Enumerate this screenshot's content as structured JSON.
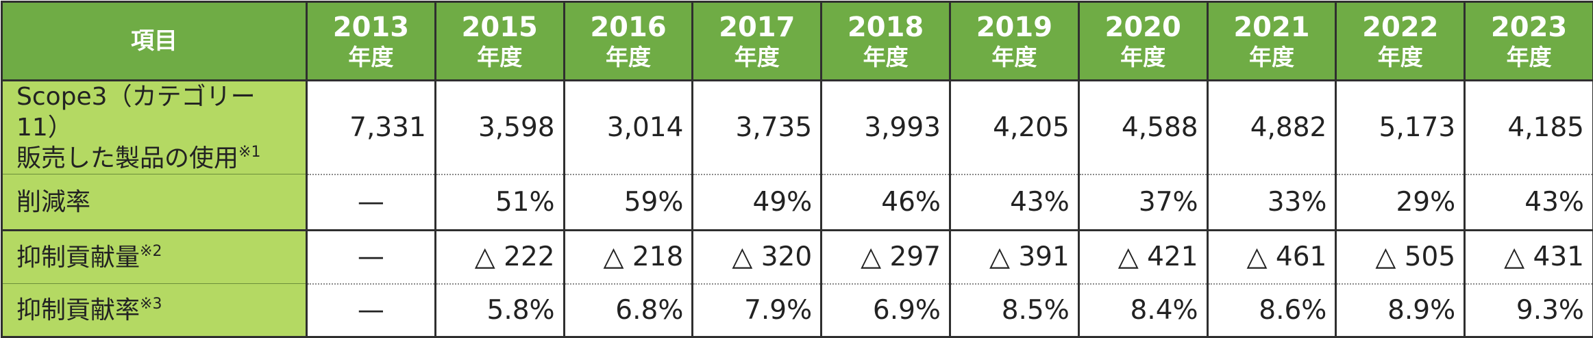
{
  "header": {
    "item_label": "項目",
    "year_suffix": "年度",
    "years": [
      "2013",
      "2015",
      "2016",
      "2017",
      "2018",
      "2019",
      "2020",
      "2021",
      "2022",
      "2023"
    ]
  },
  "rows": [
    {
      "label_line1": "Scope3（カテゴリー11）",
      "label_line2": "販売した製品の使用",
      "note": "※1",
      "values": [
        "7,331",
        "3,598",
        "3,014",
        "3,735",
        "3,993",
        "4,205",
        "4,588",
        "4,882",
        "5,173",
        "4,185"
      ]
    },
    {
      "label": "削減率",
      "values": [
        "—",
        "51%",
        "59%",
        "49%",
        "46%",
        "43%",
        "37%",
        "33%",
        "29%",
        "43%"
      ]
    },
    {
      "label": "抑制貢献量",
      "note": "※2",
      "values": [
        "—",
        "△ 222",
        "△ 218",
        "△ 320",
        "△ 297",
        "△ 391",
        "△ 421",
        "△ 461",
        "△ 505",
        "△ 431"
      ]
    },
    {
      "label": "抑制貢献率",
      "note": "※3",
      "values": [
        "—",
        "5.8%",
        "6.8%",
        "7.9%",
        "6.9%",
        "8.5%",
        "8.4%",
        "8.6%",
        "8.9%",
        "9.3%"
      ]
    }
  ],
  "colors": {
    "header_bg": "#6fac45",
    "label_bg": "#b4d963",
    "border": "#2f2f2f"
  }
}
